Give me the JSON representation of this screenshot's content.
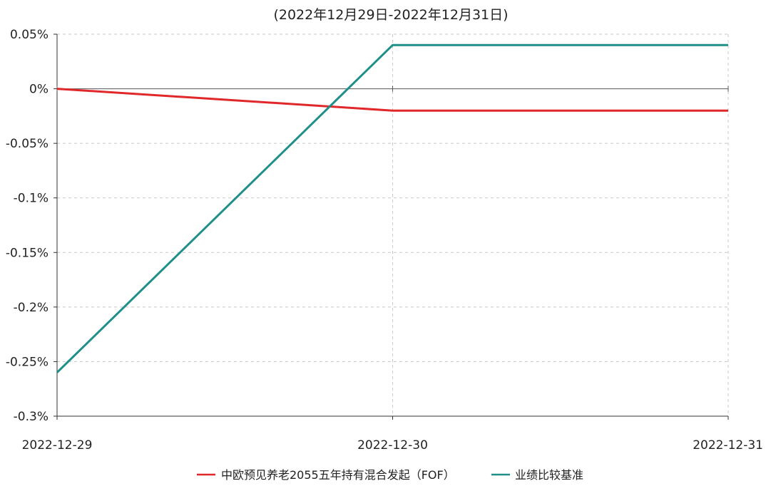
{
  "chart_data": {
    "type": "line",
    "subtitle": "(2022年12月29日-2022年12月31日)",
    "x": [
      "2022-12-29",
      "2022-12-30",
      "2022-12-31"
    ],
    "y_ticks": [
      "0.05%",
      "0%",
      "-0.05%",
      "-0.1%",
      "-0.15%",
      "-0.2%",
      "-0.25%",
      "-0.3%"
    ],
    "y_tick_values": [
      0.05,
      0,
      -0.05,
      -0.1,
      -0.15,
      -0.2,
      -0.25,
      -0.3
    ],
    "ylim": [
      -0.3,
      0.05
    ],
    "y_unit": "%",
    "grid": true,
    "legend_position": "bottom",
    "series": [
      {
        "name": "中欧预见养老2055五年持有混合发起（FOF）",
        "color": "#e0272a",
        "values": [
          0.0,
          -0.02,
          -0.02
        ]
      },
      {
        "name": "业绩比较基准",
        "color": "#1f8f8a",
        "values": [
          -0.26,
          0.04,
          0.04
        ]
      }
    ]
  }
}
